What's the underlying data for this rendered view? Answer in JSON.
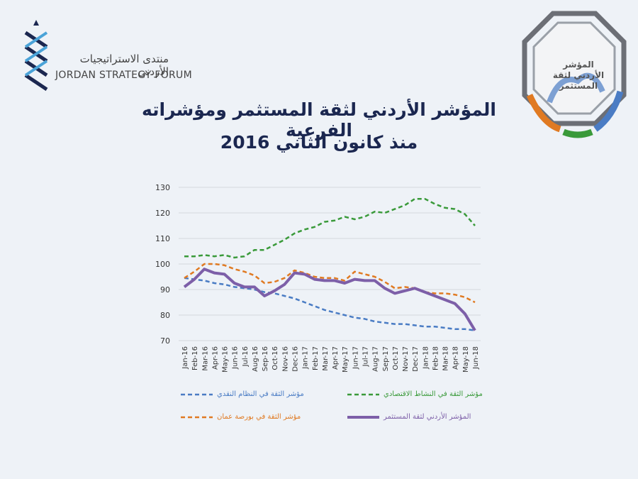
{
  "header": {
    "org_arabic": "منتدى الاستراتيجيات الأردني",
    "org_english": "JORDAN STRATEGY FORUM",
    "badge": "المؤشر الأردني لثقة المستثمر"
  },
  "chart_data": {
    "type": "line",
    "title": "المؤشر الأردني لثقة المستثمر ومؤشراته الفرعية",
    "subtitle": "منذ كانون الثاني 2016",
    "categories": [
      "Jan-16",
      "Feb-16",
      "Mar-16",
      "Apr-16",
      "May-16",
      "Jun-16",
      "Jul-16",
      "Aug-16",
      "Sep-16",
      "Oct-16",
      "Nov-16",
      "Dec-16",
      "Jan-17",
      "Feb-17",
      "Mar-17",
      "Apr-17",
      "May-17",
      "Jun-17",
      "Jul-17",
      "Aug-17",
      "Sep-17",
      "Oct-17",
      "Nov-17",
      "Dec-17",
      "Jan-18",
      "Feb-18",
      "Mar-18",
      "Apr-18",
      "May-18",
      "Jun-18"
    ],
    "series": [
      {
        "name": "مؤشر الثقة في النشاط الاقتصادي",
        "color": "#3a9a3a",
        "dashed": true,
        "values": [
          103,
          103,
          103.5,
          103,
          103.5,
          102.5,
          103,
          105.5,
          105.5,
          107.5,
          109.5,
          112,
          113.5,
          114.5,
          116.5,
          117,
          118.5,
          117.5,
          118.5,
          120.5,
          120,
          121.5,
          123,
          125.5,
          125.5,
          123.5,
          122,
          121.5,
          119.5,
          115
        ]
      },
      {
        "name": "مؤشر الثقة في النظام النقدي",
        "color": "#4a7cc4",
        "dashed": true,
        "values": [
          94.5,
          94,
          93.5,
          92.5,
          92,
          91,
          90.5,
          90,
          89,
          88.5,
          87.5,
          86.5,
          85,
          83.5,
          82,
          81,
          80,
          79,
          78.5,
          77.5,
          77,
          76.5,
          76.5,
          76,
          75.5,
          75.5,
          75,
          74.5,
          74.5,
          74
        ]
      },
      {
        "name": "مؤشر الثقة في بورصة عمان",
        "color": "#e07a22",
        "dashed": true,
        "values": [
          94.5,
          97,
          100,
          100,
          99.5,
          98,
          97,
          95.5,
          92.5,
          93,
          94.5,
          97.5,
          96.5,
          95,
          94.5,
          94.5,
          93.5,
          97,
          96,
          95,
          93,
          90.5,
          91,
          90.5,
          89,
          88.5,
          88.5,
          88,
          87,
          85
        ]
      },
      {
        "name": "المؤشر الأردني لثقة المستثمر",
        "color": "#7d5fa8",
        "dashed": false,
        "values": [
          91,
          94,
          98,
          96.5,
          96,
          92.5,
          91,
          91,
          87.5,
          89.5,
          92,
          96.5,
          96,
          94,
          93.5,
          93.5,
          92.5,
          94,
          93.5,
          93.5,
          90.5,
          88.5,
          89.5,
          90.5,
          89,
          87.5,
          86,
          84.5,
          80.5,
          74
        ]
      }
    ],
    "ylim": [
      70,
      130
    ],
    "yticks": [
      70,
      80,
      90,
      100,
      110,
      120,
      130
    ],
    "grid": true
  }
}
